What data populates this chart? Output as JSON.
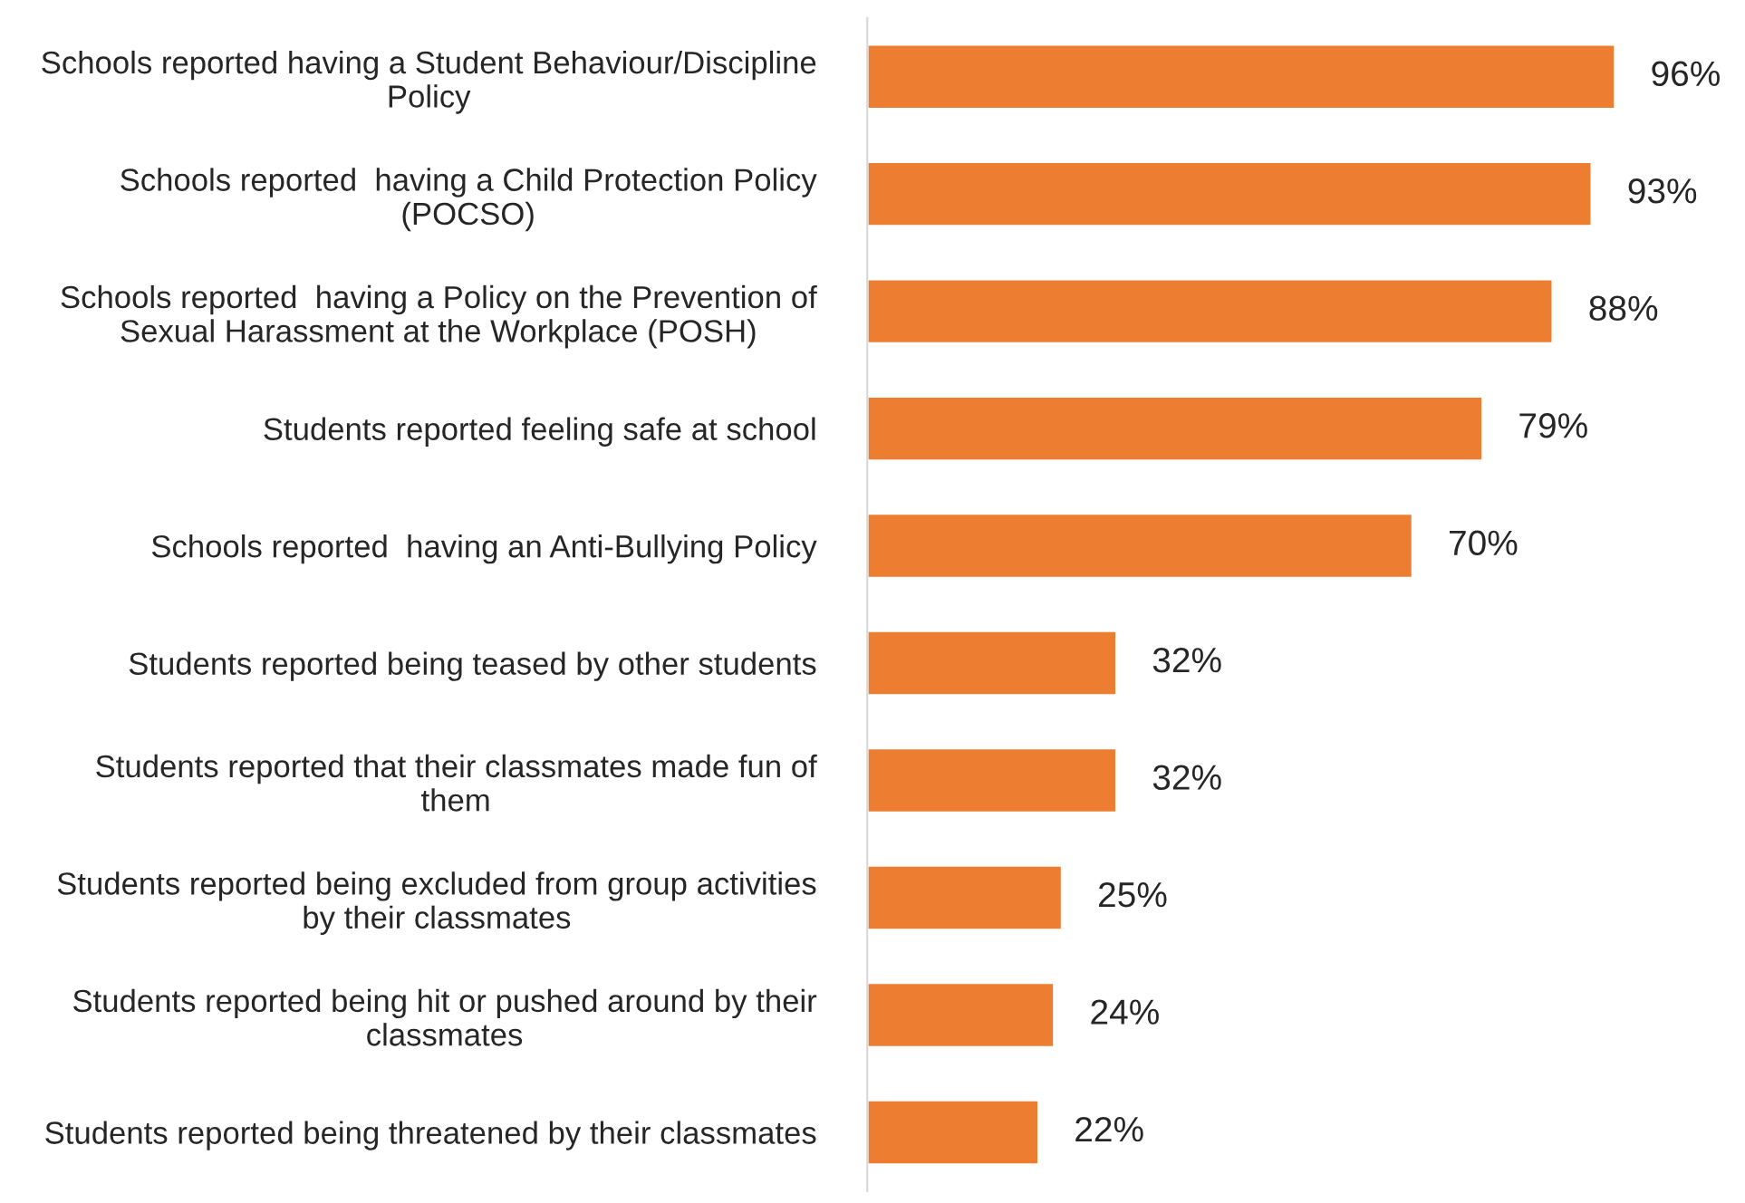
{
  "chart_data": {
    "type": "bar",
    "orientation": "horizontal",
    "categories": [
      "Schools reported having a Student Behaviour/Discipline\nPolicy",
      "Schools reported  having a Child Protection Policy\n(POCSO)",
      "Schools reported  having a Policy on the Prevention of\nSexual Harassment at the Workplace (POSH)",
      "Students reported feeling safe at school",
      "Schools reported  having an Anti-Bullying Policy",
      "Students reported being teased by other students",
      "Students reported that their classmates made fun of\nthem",
      "Students reported being excluded from group activities\nby their classmates",
      "Students reported being hit or pushed around by their\nclassmates",
      "Students reported being threatened by their classmates"
    ],
    "values": [
      96,
      93,
      88,
      79,
      70,
      32,
      32,
      25,
      24,
      22
    ],
    "value_labels": [
      "96%",
      "93%",
      "88%",
      "79%",
      "70%",
      "32%",
      "32%",
      "25%",
      "24%",
      "22%"
    ],
    "color": "#ed7d31"
  }
}
